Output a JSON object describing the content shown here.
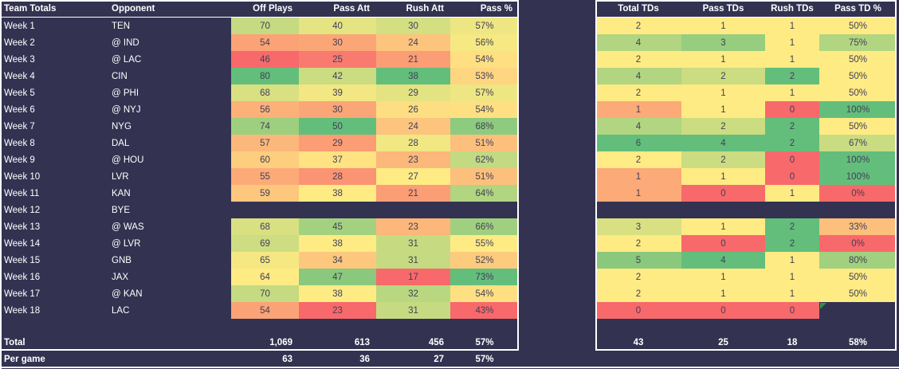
{
  "colors": {
    "background": "#333251",
    "border": "#ffffff",
    "header_text": "#ffffff",
    "row_label_text": "#ffffff",
    "heat_cell_text": "#413f58",
    "total_text": "#ffffff",
    "error_marker_green": "#2f9148"
  },
  "heat_scale": {
    "min_color": "#F8696B",
    "mid_color": "#FFEB84",
    "max_color": "#63BE7B"
  },
  "left_table": {
    "headers": {
      "week": "Team Totals",
      "opponent": "Opponent",
      "off_plays": "Off Plays",
      "pass_att": "Pass Att",
      "rush_att": "Rush Att",
      "pass_pct": "Pass %"
    },
    "rows": [
      {
        "week": "Week 1",
        "opponent": "TEN",
        "off_plays": 70,
        "pass_att": 40,
        "rush_att": 30,
        "pass_pct": 57
      },
      {
        "week": "Week 2",
        "opponent": "@ IND",
        "off_plays": 54,
        "pass_att": 30,
        "rush_att": 24,
        "pass_pct": 56
      },
      {
        "week": "Week 3",
        "opponent": "@ LAC",
        "off_plays": 46,
        "pass_att": 25,
        "rush_att": 21,
        "pass_pct": 54
      },
      {
        "week": "Week 4",
        "opponent": "CIN",
        "off_plays": 80,
        "pass_att": 42,
        "rush_att": 38,
        "pass_pct": 53
      },
      {
        "week": "Week 5",
        "opponent": "@ PHI",
        "off_plays": 68,
        "pass_att": 39,
        "rush_att": 29,
        "pass_pct": 57
      },
      {
        "week": "Week 6",
        "opponent": "@ NYJ",
        "off_plays": 56,
        "pass_att": 30,
        "rush_att": 26,
        "pass_pct": 54
      },
      {
        "week": "Week 7",
        "opponent": "NYG",
        "off_plays": 74,
        "pass_att": 50,
        "rush_att": 24,
        "pass_pct": 68
      },
      {
        "week": "Week 8",
        "opponent": "DAL",
        "off_plays": 57,
        "pass_att": 29,
        "rush_att": 28,
        "pass_pct": 51
      },
      {
        "week": "Week 9",
        "opponent": "@ HOU",
        "off_plays": 60,
        "pass_att": 37,
        "rush_att": 23,
        "pass_pct": 62
      },
      {
        "week": "Week 10",
        "opponent": "LVR",
        "off_plays": 55,
        "pass_att": 28,
        "rush_att": 27,
        "pass_pct": 51
      },
      {
        "week": "Week 11",
        "opponent": "KAN",
        "off_plays": 59,
        "pass_att": 38,
        "rush_att": 21,
        "pass_pct": 64
      },
      {
        "week": "Week 12",
        "opponent": "BYE",
        "off_plays": null,
        "pass_att": null,
        "rush_att": null,
        "pass_pct": null
      },
      {
        "week": "Week 13",
        "opponent": "@ WAS",
        "off_plays": 68,
        "pass_att": 45,
        "rush_att": 23,
        "pass_pct": 66
      },
      {
        "week": "Week 14",
        "opponent": "@ LVR",
        "off_plays": 69,
        "pass_att": 38,
        "rush_att": 31,
        "pass_pct": 55
      },
      {
        "week": "Week 15",
        "opponent": "GNB",
        "off_plays": 65,
        "pass_att": 34,
        "rush_att": 31,
        "pass_pct": 52
      },
      {
        "week": "Week 16",
        "opponent": "JAX",
        "off_plays": 64,
        "pass_att": 47,
        "rush_att": 17,
        "pass_pct": 73
      },
      {
        "week": "Week 17",
        "opponent": "@ KAN",
        "off_plays": 70,
        "pass_att": 38,
        "rush_att": 32,
        "pass_pct": 54
      },
      {
        "week": "Week 18",
        "opponent": "LAC",
        "off_plays": 54,
        "pass_att": 23,
        "rush_att": 31,
        "pass_pct": 43
      }
    ],
    "total_row": {
      "label": "Total",
      "off_plays": "1,069",
      "pass_att": "613",
      "rush_att": "456",
      "pass_pct": "57%"
    },
    "per_game_row": {
      "label": "Per game",
      "off_plays": "63",
      "pass_att": "36",
      "rush_att": "27",
      "pass_pct": "57%"
    }
  },
  "right_table": {
    "headers": {
      "total_tds": "Total TDs",
      "pass_tds": "Pass TDs",
      "rush_tds": "Rush TDs",
      "pass_td_pct": "Pass TD %"
    },
    "rows": [
      {
        "total_tds": 2,
        "pass_tds": 1,
        "rush_tds": 1,
        "pass_td_pct": 50
      },
      {
        "total_tds": 4,
        "pass_tds": 3,
        "rush_tds": 1,
        "pass_td_pct": 75
      },
      {
        "total_tds": 2,
        "pass_tds": 1,
        "rush_tds": 1,
        "pass_td_pct": 50
      },
      {
        "total_tds": 4,
        "pass_tds": 2,
        "rush_tds": 2,
        "pass_td_pct": 50
      },
      {
        "total_tds": 2,
        "pass_tds": 1,
        "rush_tds": 1,
        "pass_td_pct": 50
      },
      {
        "total_tds": 1,
        "pass_tds": 1,
        "rush_tds": 0,
        "pass_td_pct": 100
      },
      {
        "total_tds": 4,
        "pass_tds": 2,
        "rush_tds": 2,
        "pass_td_pct": 50
      },
      {
        "total_tds": 6,
        "pass_tds": 4,
        "rush_tds": 2,
        "pass_td_pct": 67
      },
      {
        "total_tds": 2,
        "pass_tds": 2,
        "rush_tds": 0,
        "pass_td_pct": 100
      },
      {
        "total_tds": 1,
        "pass_tds": 1,
        "rush_tds": 0,
        "pass_td_pct": 100
      },
      {
        "total_tds": 1,
        "pass_tds": 0,
        "rush_tds": 1,
        "pass_td_pct": 0
      },
      {
        "total_tds": null,
        "pass_tds": null,
        "rush_tds": null,
        "pass_td_pct": null
      },
      {
        "total_tds": 3,
        "pass_tds": 1,
        "rush_tds": 2,
        "pass_td_pct": 33
      },
      {
        "total_tds": 2,
        "pass_tds": 0,
        "rush_tds": 2,
        "pass_td_pct": 0
      },
      {
        "total_tds": 5,
        "pass_tds": 4,
        "rush_tds": 1,
        "pass_td_pct": 80
      },
      {
        "total_tds": 2,
        "pass_tds": 1,
        "rush_tds": 1,
        "pass_td_pct": 50
      },
      {
        "total_tds": 2,
        "pass_tds": 1,
        "rush_tds": 1,
        "pass_td_pct": 50
      },
      {
        "total_tds": 0,
        "pass_tds": 0,
        "rush_tds": 0,
        "pass_td_pct": null,
        "error_marker": true
      }
    ],
    "total_row": {
      "total_tds": "43",
      "pass_tds": "25",
      "rush_tds": "18",
      "pass_td_pct": "58%"
    }
  }
}
